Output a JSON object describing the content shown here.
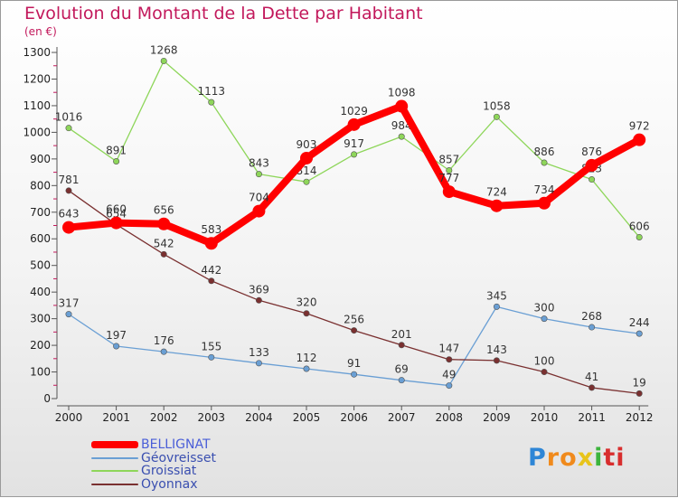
{
  "header": {
    "title": "Evolution du Montant de la Dette par Habitant",
    "subtitle": "(en €)"
  },
  "chart_data": {
    "type": "line",
    "title": "Evolution du Montant de la Dette par Habitant",
    "subtitle": "(en €)",
    "x": [
      "2000",
      "2001",
      "2002",
      "2003",
      "2004",
      "2005",
      "2006",
      "2007",
      "2008",
      "2009",
      "2010",
      "2011",
      "2012"
    ],
    "y_ticks": [
      0,
      100,
      200,
      300,
      400,
      500,
      600,
      700,
      800,
      900,
      1000,
      1100,
      1200,
      1300
    ],
    "ylim": [
      0,
      1300
    ],
    "grid": false,
    "legend_position": "bottom-left",
    "series": [
      {
        "name": "BELLIGNAT",
        "color": "#ff0000",
        "values": [
          643,
          660,
          656,
          583,
          704,
          903,
          1029,
          1098,
          777,
          724,
          734,
          876,
          972
        ]
      },
      {
        "name": "Géovreisset",
        "color": "#6a9fd4",
        "values": [
          317,
          197,
          176,
          155,
          133,
          112,
          91,
          69,
          49,
          345,
          300,
          268,
          244
        ]
      },
      {
        "name": "Groissiat",
        "color": "#8ed65a",
        "values": [
          1016,
          891,
          1268,
          1113,
          843,
          814,
          917,
          984,
          857,
          1058,
          886,
          823,
          606
        ]
      },
      {
        "name": "Oyonnax",
        "color": "#7a3030",
        "values": [
          781,
          654,
          542,
          442,
          369,
          320,
          256,
          201,
          147,
          143,
          100,
          41,
          19
        ]
      }
    ]
  },
  "logo": {
    "letters": [
      "P",
      "r",
      "o",
      "x",
      "i",
      "t",
      "i"
    ],
    "colors": [
      "#2e86d6",
      "#f08a1c",
      "#f08a1c",
      "#e8c41a",
      "#3cb43c",
      "#d82e2e",
      "#d82e2e"
    ]
  }
}
